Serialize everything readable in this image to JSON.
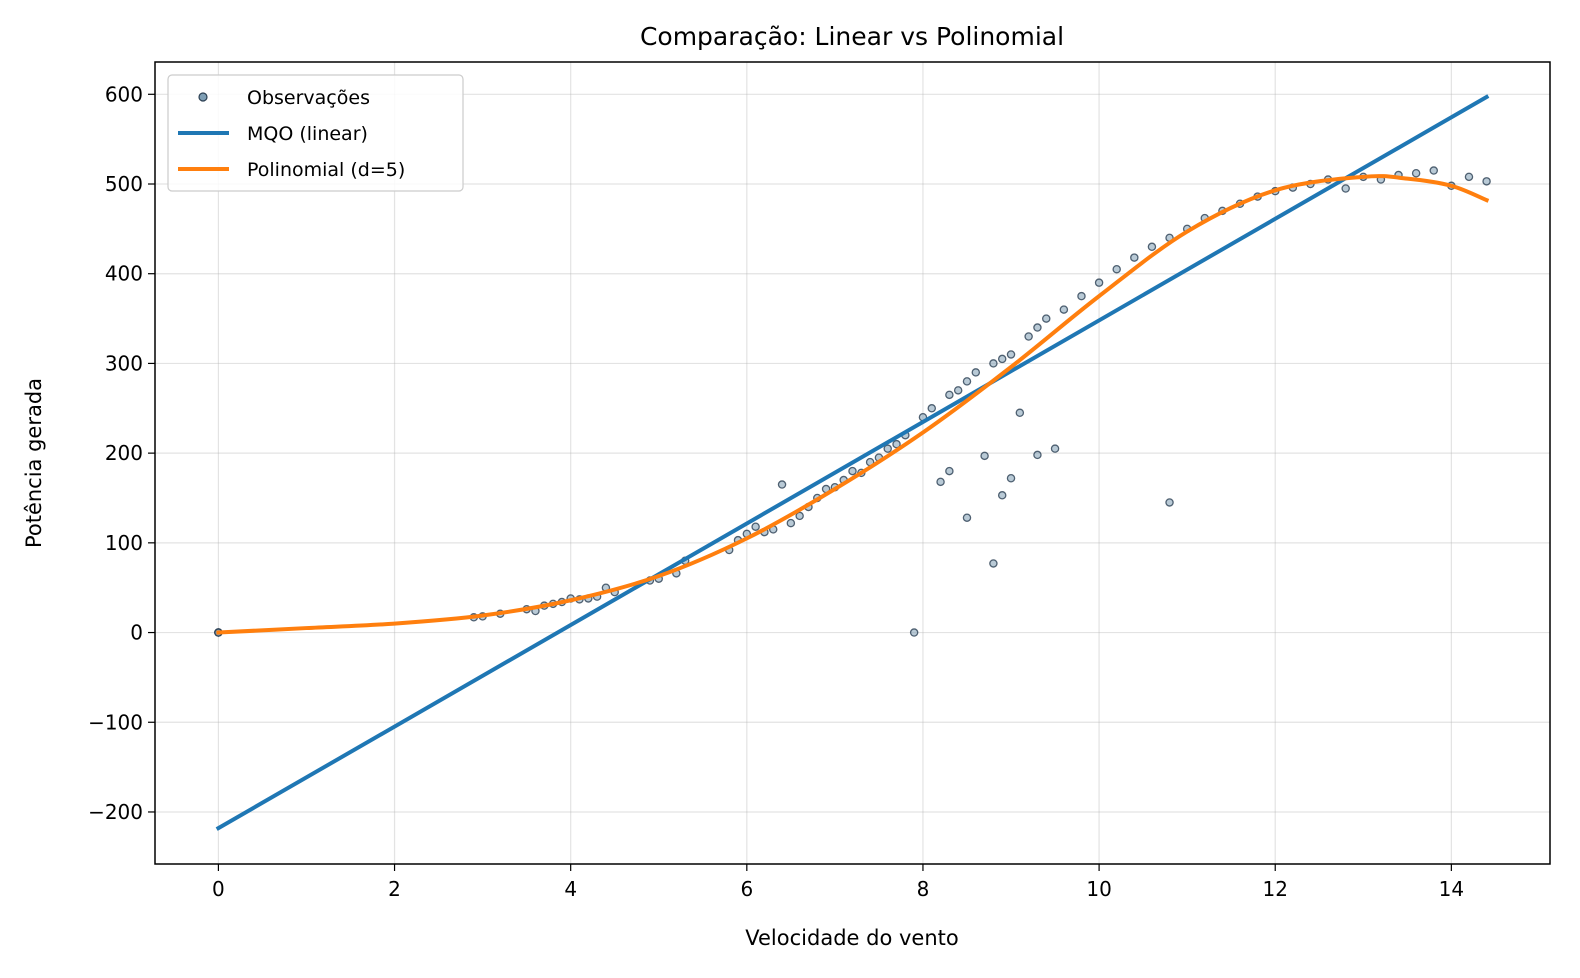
{
  "chart_data": {
    "type": "scatter",
    "title": "Comparação: Linear vs Polinomial",
    "xlabel": "Velocidade do vento",
    "ylabel": "Potência gerada",
    "xlim": [
      -0.72,
      15.12
    ],
    "ylim": [
      -258,
      636
    ],
    "x_ticks": [
      0,
      2,
      4,
      6,
      8,
      10,
      12,
      14
    ],
    "x_tick_labels": [
      "0",
      "2",
      "4",
      "6",
      "8",
      "10",
      "12",
      "14"
    ],
    "y_ticks": [
      -200,
      -100,
      0,
      100,
      200,
      300,
      400,
      500,
      600
    ],
    "y_tick_labels": [
      "−200",
      "−100",
      "0",
      "100",
      "200",
      "300",
      "400",
      "500",
      "600"
    ],
    "grid": true,
    "legend_position": "top-left",
    "colors": {
      "observations_fill": "#7f9fb5",
      "observations_edge": "#2b3f52",
      "linear": "#1f77b4",
      "polynomial": "#ff7f0e"
    },
    "series": [
      {
        "name": "Observações",
        "kind": "scatter",
        "points": [
          [
            0,
            0
          ],
          [
            0,
            0
          ],
          [
            0,
            0
          ],
          [
            2.9,
            17
          ],
          [
            3,
            18
          ],
          [
            3.2,
            21
          ],
          [
            3.5,
            26
          ],
          [
            3.6,
            24
          ],
          [
            3.7,
            30
          ],
          [
            3.8,
            32
          ],
          [
            3.9,
            34
          ],
          [
            4.0,
            38
          ],
          [
            4.1,
            37
          ],
          [
            4.2,
            38
          ],
          [
            4.3,
            40
          ],
          [
            4.4,
            50
          ],
          [
            4.5,
            45
          ],
          [
            4.9,
            58
          ],
          [
            5.0,
            60
          ],
          [
            5.2,
            66
          ],
          [
            5.3,
            80
          ],
          [
            5.8,
            92
          ],
          [
            5.9,
            103
          ],
          [
            6.0,
            110
          ],
          [
            6.1,
            118
          ],
          [
            6.2,
            112
          ],
          [
            6.3,
            115
          ],
          [
            6.4,
            165
          ],
          [
            6.5,
            122
          ],
          [
            6.6,
            130
          ],
          [
            6.7,
            140
          ],
          [
            6.8,
            150
          ],
          [
            6.9,
            160
          ],
          [
            7.0,
            162
          ],
          [
            7.1,
            170
          ],
          [
            7.2,
            180
          ],
          [
            7.3,
            178
          ],
          [
            7.4,
            190
          ],
          [
            7.5,
            195
          ],
          [
            7.6,
            205
          ],
          [
            7.7,
            210
          ],
          [
            7.8,
            220
          ],
          [
            7.9,
            0
          ],
          [
            8.0,
            240
          ],
          [
            8.1,
            250
          ],
          [
            8.2,
            168
          ],
          [
            8.3,
            180
          ],
          [
            8.3,
            265
          ],
          [
            8.4,
            270
          ],
          [
            8.5,
            128
          ],
          [
            8.5,
            280
          ],
          [
            8.6,
            290
          ],
          [
            8.7,
            197
          ],
          [
            8.8,
            77
          ],
          [
            8.8,
            300
          ],
          [
            8.9,
            153
          ],
          [
            8.9,
            305
          ],
          [
            9.0,
            172
          ],
          [
            9.0,
            310
          ],
          [
            9.1,
            245
          ],
          [
            9.2,
            330
          ],
          [
            9.3,
            198
          ],
          [
            9.3,
            340
          ],
          [
            9.4,
            350
          ],
          [
            9.5,
            205
          ],
          [
            9.6,
            360
          ],
          [
            9.8,
            375
          ],
          [
            10.0,
            390
          ],
          [
            10.2,
            405
          ],
          [
            10.4,
            418
          ],
          [
            10.6,
            430
          ],
          [
            10.8,
            145
          ],
          [
            10.8,
            440
          ],
          [
            11.0,
            450
          ],
          [
            11.2,
            462
          ],
          [
            11.4,
            470
          ],
          [
            11.6,
            478
          ],
          [
            11.8,
            486
          ],
          [
            12.0,
            492
          ],
          [
            12.2,
            496
          ],
          [
            12.4,
            500
          ],
          [
            12.6,
            505
          ],
          [
            12.8,
            495
          ],
          [
            13.0,
            508
          ],
          [
            13.2,
            505
          ],
          [
            13.4,
            510
          ],
          [
            13.6,
            512
          ],
          [
            13.8,
            515
          ],
          [
            14.0,
            498
          ],
          [
            14.2,
            508
          ],
          [
            14.4,
            503
          ]
        ]
      },
      {
        "name": "MQO (linear)",
        "kind": "line",
        "x": [
          0,
          14.4
        ],
        "y": [
          -218,
          597
        ]
      },
      {
        "name": "Polinomial (d=5)",
        "kind": "line",
        "x": [
          0,
          1,
          2,
          3,
          4,
          5,
          6,
          7,
          8,
          9,
          10,
          11,
          12,
          13,
          13.5,
          14,
          14.4
        ],
        "y": [
          0,
          5,
          10,
          19,
          36,
          63,
          105,
          160,
          223,
          296,
          375,
          447,
          493,
          508,
          506,
          498,
          482
        ]
      }
    ]
  }
}
